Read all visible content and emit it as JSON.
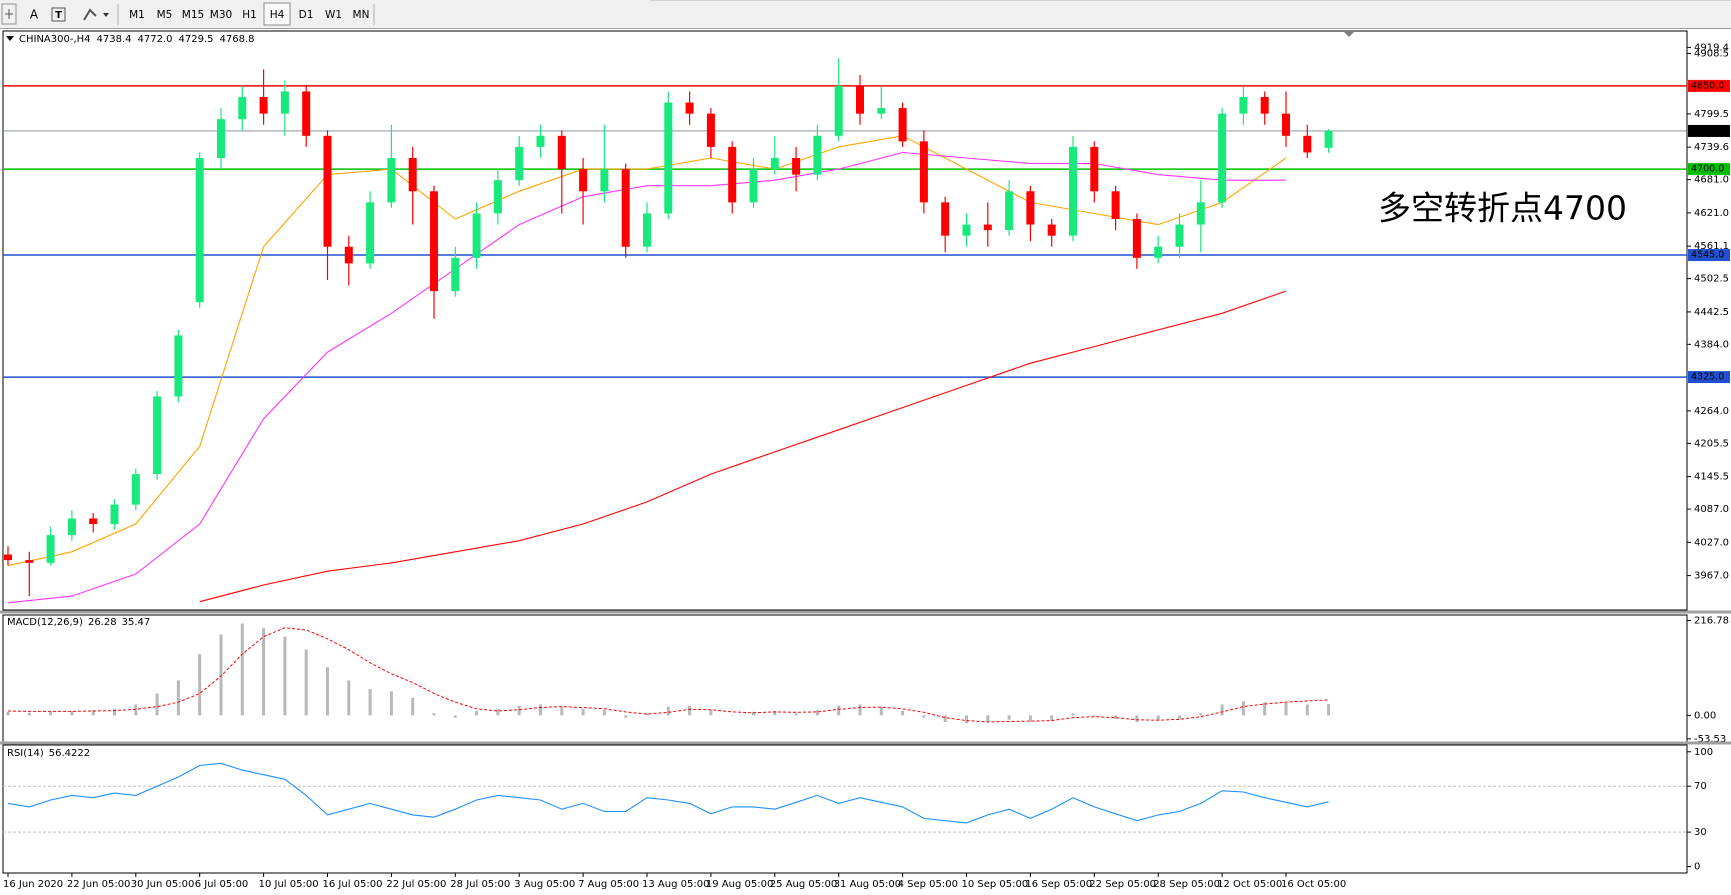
{
  "toolbar": {
    "text_tool": "A",
    "timeframes": [
      "M1",
      "M5",
      "M15",
      "M30",
      "H1",
      "H4",
      "D1",
      "W1",
      "MN"
    ],
    "active": "H4"
  },
  "chart_data": [
    {
      "type": "candlestick",
      "symbol": "CHINA300-,H4",
      "categories": [
        "16 Jun 2020",
        null,
        null,
        "22 Jun 05:00",
        null,
        null,
        "30 Jun 05:00",
        null,
        null,
        "6 Jul 05:00",
        null,
        null,
        "10 Jul 05:00",
        null,
        null,
        "16 Jul 05:00",
        null,
        null,
        "22 Jul 05:00",
        null,
        null,
        "28 Jul 05:00",
        null,
        null,
        "3 Aug 05:00",
        null,
        null,
        "7 Aug 05:00",
        null,
        null,
        "13 Aug 05:00",
        null,
        null,
        "19 Aug 05:00",
        null,
        null,
        "25 Aug 05:00",
        null,
        null,
        "31 Aug 05:00",
        null,
        null,
        "4 Sep 05:00",
        null,
        null,
        "10 Sep 05:00",
        null,
        null,
        "16 Sep 05:00",
        null,
        null,
        "22 Sep 05:00",
        null,
        null,
        "28 Sep 05:00",
        null,
        null,
        "12 Oct 05:00",
        null,
        null,
        "16 Oct 05:00",
        null,
        null
      ],
      "candles": [
        [
          4005,
          4020,
          3985,
          3995
        ],
        [
          3995,
          4010,
          3930,
          3990
        ],
        [
          3990,
          4055,
          3985,
          4040
        ],
        [
          4040,
          4085,
          4030,
          4070
        ],
        [
          4070,
          4080,
          4045,
          4060
        ],
        [
          4060,
          4105,
          4050,
          4095
        ],
        [
          4095,
          4160,
          4085,
          4150
        ],
        [
          4150,
          4300,
          4140,
          4290
        ],
        [
          4290,
          4410,
          4280,
          4400
        ],
        [
          4460,
          4730,
          4450,
          4720
        ],
        [
          4720,
          4810,
          4700,
          4790
        ],
        [
          4790,
          4850,
          4770,
          4830
        ],
        [
          4830,
          4880,
          4780,
          4800
        ],
        [
          4800,
          4860,
          4760,
          4840
        ],
        [
          4840,
          4850,
          4740,
          4760
        ],
        [
          4760,
          4770,
          4500,
          4560
        ],
        [
          4560,
          4580,
          4490,
          4530
        ],
        [
          4530,
          4660,
          4520,
          4640
        ],
        [
          4640,
          4780,
          4630,
          4720
        ],
        [
          4720,
          4740,
          4600,
          4660
        ],
        [
          4660,
          4670,
          4430,
          4480
        ],
        [
          4480,
          4560,
          4470,
          4540
        ],
        [
          4540,
          4640,
          4520,
          4620
        ],
        [
          4620,
          4700,
          4600,
          4680
        ],
        [
          4680,
          4760,
          4670,
          4740
        ],
        [
          4740,
          4780,
          4720,
          4760
        ],
        [
          4760,
          4770,
          4620,
          4700
        ],
        [
          4700,
          4720,
          4600,
          4660
        ],
        [
          4660,
          4780,
          4640,
          4700
        ],
        [
          4700,
          4710,
          4540,
          4560
        ],
        [
          4560,
          4640,
          4550,
          4620
        ],
        [
          4620,
          4840,
          4610,
          4820
        ],
        [
          4820,
          4840,
          4780,
          4800
        ],
        [
          4800,
          4810,
          4720,
          4740
        ],
        [
          4740,
          4750,
          4620,
          4640
        ],
        [
          4640,
          4720,
          4630,
          4700
        ],
        [
          4700,
          4760,
          4690,
          4720
        ],
        [
          4720,
          4740,
          4660,
          4690
        ],
        [
          4690,
          4780,
          4680,
          4760
        ],
        [
          4760,
          4900,
          4750,
          4850
        ],
        [
          4850,
          4870,
          4780,
          4800
        ],
        [
          4800,
          4850,
          4790,
          4810
        ],
        [
          4810,
          4820,
          4740,
          4750
        ],
        [
          4750,
          4770,
          4620,
          4640
        ],
        [
          4640,
          4650,
          4550,
          4580
        ],
        [
          4580,
          4620,
          4560,
          4600
        ],
        [
          4600,
          4640,
          4560,
          4590
        ],
        [
          4590,
          4680,
          4580,
          4660
        ],
        [
          4660,
          4670,
          4570,
          4600
        ],
        [
          4600,
          4610,
          4560,
          4580
        ],
        [
          4580,
          4760,
          4570,
          4740
        ],
        [
          4740,
          4750,
          4640,
          4660
        ],
        [
          4660,
          4670,
          4590,
          4610
        ],
        [
          4610,
          4620,
          4520,
          4540
        ],
        [
          4540,
          4580,
          4530,
          4560
        ],
        [
          4560,
          4620,
          4540,
          4600
        ],
        [
          4600,
          4680,
          4550,
          4640
        ],
        [
          4640,
          4810,
          4630,
          4800
        ],
        [
          4800,
          4850,
          4780,
          4830
        ],
        [
          4830,
          4840,
          4780,
          4800
        ],
        [
          4800,
          4840,
          4740,
          4760
        ],
        [
          4760,
          4780,
          4720,
          4730
        ],
        [
          4738.4,
          4772.0,
          4729.5,
          4768.8
        ]
      ],
      "last_candle_labels": [
        "4738.4",
        "4772.0",
        "4729.5",
        "4768.8"
      ],
      "bull_color": "#19e87c",
      "bear_color": "#ff0000",
      "moving_averages": [
        {
          "color": "#ffa500",
          "values": [
            3985,
            4010,
            4060,
            4200,
            4560,
            4690,
            4700,
            4610,
            4660,
            4700,
            4700,
            4720,
            4700,
            4740,
            4760,
            4700,
            4640,
            4620,
            4600,
            4640,
            4720
          ]
        },
        {
          "color": "#ff33ff",
          "values": [
            3918,
            3930,
            3970,
            4060,
            4250,
            4370,
            4440,
            4520,
            4600,
            4650,
            4670,
            4670,
            4680,
            4700,
            4730,
            4720,
            4710,
            4710,
            4690,
            4680,
            4680
          ]
        },
        {
          "color": "#ff0000",
          "values": [
            null,
            null,
            null,
            3920,
            3950,
            3975,
            3990,
            4010,
            4030,
            4060,
            4100,
            4150,
            4190,
            4230,
            4270,
            4310,
            4350,
            4380,
            4410,
            4440,
            4480
          ]
        }
      ],
      "levels": [
        {
          "value": 4850,
          "label": "4850.0",
          "color": "#ff0000"
        },
        {
          "value": 4700,
          "label": "4700.0",
          "color": "#00c000"
        },
        {
          "value": 4545,
          "label": "4545.0",
          "color": "#2050d0"
        },
        {
          "value": 4325,
          "label": "4325.0",
          "color": "#2050d0"
        }
      ],
      "ylim": [
        3905,
        4949
      ],
      "yticks": [
        4919.4,
        4799.5,
        4739.6,
        {
          "value": 4681,
          "label": "4681.0"
        },
        {
          "value": 4621,
          "label": "4621.0"
        },
        4561.1,
        4502.5,
        4442.5,
        {
          "value": 4384,
          "label": "4384.0"
        },
        {
          "value": 4264,
          "label": "4264.0"
        },
        4205.5,
        4145.5,
        {
          "value": 4087,
          "label": "4087.0"
        },
        {
          "value": 4027,
          "label": "4027.0"
        },
        {
          "value": 3967,
          "label": "3967.0"
        },
        4908.5
      ],
      "annotation": {
        "text": "多空转折点4700",
        "color": "#ff0000"
      }
    },
    {
      "type": "macd",
      "title": "MACD(12,26,9)",
      "histogram": {
        "color": "#b8b8b8",
        "values": [
          8,
          6,
          8,
          10,
          12,
          15,
          25,
          50,
          80,
          140,
          185,
          210,
          200,
          180,
          150,
          110,
          80,
          60,
          55,
          40,
          5,
          -5,
          10,
          15,
          22,
          25,
          20,
          15,
          12,
          -5,
          5,
          20,
          22,
          12,
          0,
          8,
          10,
          5,
          12,
          22,
          25,
          20,
          10,
          -5,
          -15,
          -18,
          -16,
          -10,
          -14,
          -12,
          5,
          -2,
          -8,
          -15,
          -12,
          -8,
          5,
          25,
          32,
          30,
          28,
          25,
          26.28
        ]
      },
      "signal": {
        "color": "#ff0000",
        "values": [
          10,
          9,
          9,
          9,
          10,
          11,
          14,
          20,
          30,
          50,
          90,
          140,
          180,
          200,
          195,
          175,
          150,
          120,
          95,
          75,
          50,
          30,
          15,
          10,
          13,
          18,
          20,
          18,
          15,
          8,
          3,
          7,
          14,
          13,
          8,
          6,
          8,
          7,
          8,
          14,
          18,
          19,
          15,
          7,
          -5,
          -12,
          -15,
          -14,
          -13,
          -12,
          -5,
          -3,
          -5,
          -10,
          -11,
          -9,
          -3,
          8,
          20,
          26,
          30,
          33,
          35.47
        ]
      },
      "ylim": [
        -60.8,
        229.3
      ],
      "yticks": [
        216.78,
        {
          "value": 0,
          "label": "0.00"
        },
        -53.53
      ]
    },
    {
      "type": "rsi",
      "title": "RSI(14)",
      "color": "#1e90ff",
      "values": [
        55,
        52,
        58,
        62,
        60,
        64,
        62,
        70,
        78,
        88,
        90,
        84,
        80,
        76,
        62,
        45,
        50,
        55,
        50,
        45,
        43,
        50,
        58,
        62,
        60,
        58,
        50,
        55,
        48,
        48,
        60,
        58,
        55,
        46,
        52,
        52,
        50,
        56,
        62,
        55,
        60,
        56,
        52,
        42,
        40,
        38,
        45,
        50,
        42,
        50,
        60,
        52,
        46,
        40,
        45,
        48,
        55,
        66,
        65,
        60,
        56,
        52,
        56.4222
      ],
      "levels": [
        70,
        30
      ],
      "ylim": [
        -5.6,
        105.9
      ],
      "yticks": [
        100,
        70,
        30,
        0
      ]
    }
  ]
}
